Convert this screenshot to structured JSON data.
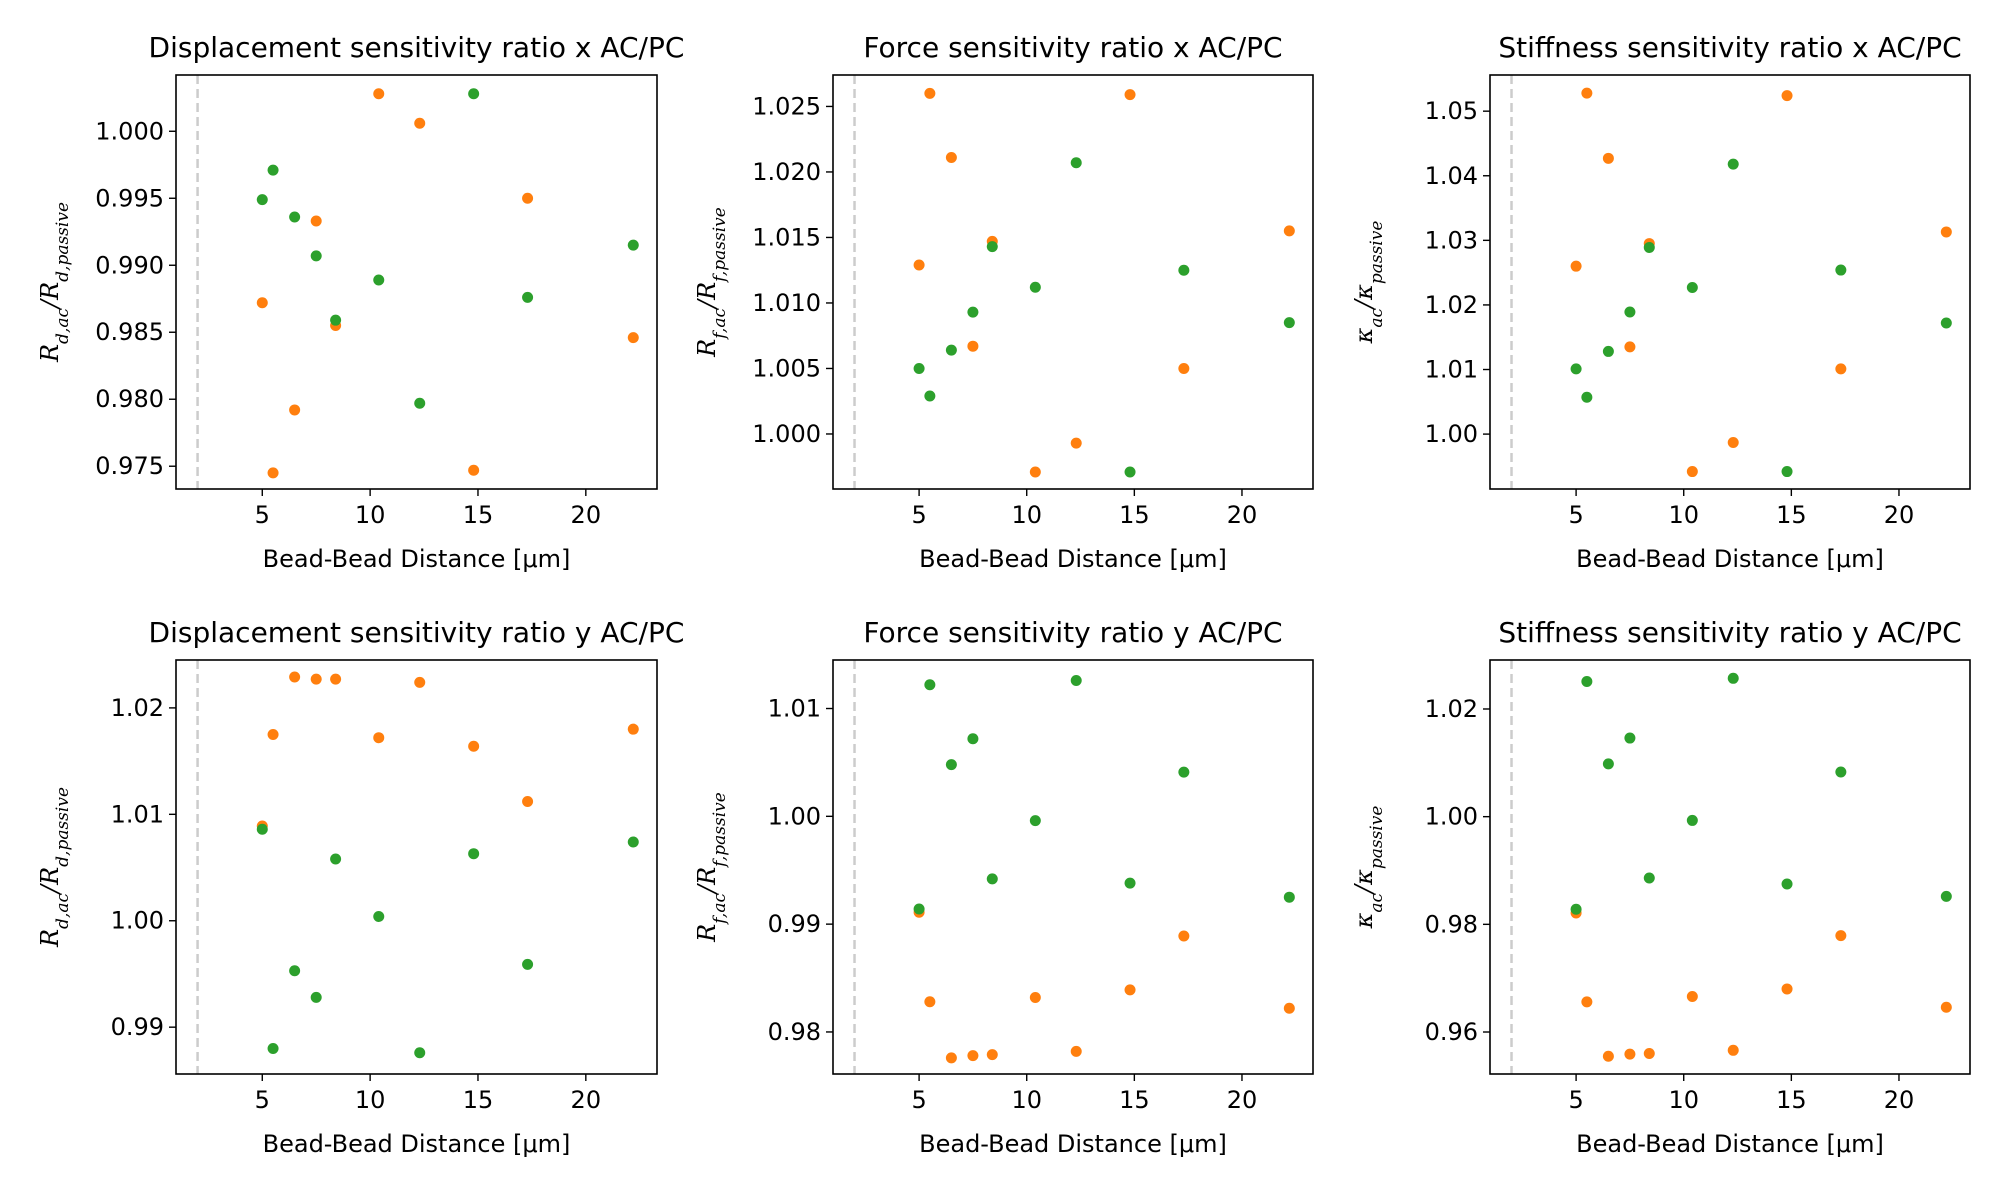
{
  "chart_data": [
    {
      "type": "scatter",
      "title": "Displacement sensitivity ratio x AC/PC",
      "xlabel": "Bead-Bead Distance [μm]",
      "ylabel": "R_{d,ac}/R_{d,passive}",
      "xlim": [
        1.0,
        23.3
      ],
      "ylim": [
        0.9733,
        1.0042
      ],
      "xticks": [
        5,
        10,
        15,
        20
      ],
      "yticks": [
        0.975,
        0.98,
        0.985,
        0.99,
        0.995,
        1.0
      ],
      "ytick_labels": [
        "0.975",
        "0.980",
        "0.985",
        "0.990",
        "0.995",
        "1.000"
      ],
      "vline_x": 2.0,
      "series": [
        {
          "color": "#ff7f0e",
          "x": [
            5.0,
            5.5,
            6.5,
            7.5,
            8.4,
            10.4,
            12.3,
            14.8,
            17.3,
            22.2
          ],
          "y": [
            0.9872,
            0.9745,
            0.9792,
            0.9933,
            0.9855,
            1.0028,
            1.0006,
            0.9747,
            0.995,
            0.9846
          ]
        },
        {
          "color": "#2ca02c",
          "x": [
            5.0,
            5.5,
            6.5,
            7.5,
            8.4,
            10.4,
            12.3,
            14.8,
            17.3,
            22.2
          ],
          "y": [
            0.9949,
            0.9971,
            0.9936,
            0.9907,
            0.9859,
            0.9889,
            0.9797,
            1.0028,
            0.9876,
            0.9915
          ]
        }
      ]
    },
    {
      "type": "scatter",
      "title": "Force sensitivity ratio x AC/PC",
      "xlabel": "Bead-Bead Distance [μm]",
      "ylabel": "R_{f,ac}/R_{f,passive}",
      "xlim": [
        1.0,
        23.3
      ],
      "ylim": [
        0.9958,
        1.0274
      ],
      "xticks": [
        5,
        10,
        15,
        20
      ],
      "yticks": [
        1.0,
        1.005,
        1.01,
        1.015,
        1.02,
        1.025
      ],
      "ytick_labels": [
        "1.000",
        "1.005",
        "1.010",
        "1.015",
        "1.020",
        "1.025"
      ],
      "vline_x": 2.0,
      "series": [
        {
          "color": "#ff7f0e",
          "x": [
            5.0,
            5.5,
            6.5,
            7.5,
            8.4,
            10.4,
            12.3,
            14.8,
            17.3,
            22.2
          ],
          "y": [
            1.0129,
            1.026,
            1.0211,
            1.0067,
            1.0147,
            0.9971,
            0.9993,
            1.0259,
            1.005,
            1.0155
          ]
        },
        {
          "color": "#2ca02c",
          "x": [
            5.0,
            5.5,
            6.5,
            7.5,
            8.4,
            10.4,
            12.3,
            14.8,
            17.3,
            22.2
          ],
          "y": [
            1.005,
            1.0029,
            1.0064,
            1.0093,
            1.0143,
            1.0112,
            1.0207,
            0.9971,
            1.0125,
            1.0085
          ]
        }
      ]
    },
    {
      "type": "scatter",
      "title": "Stiffness sensitivity ratio x AC/PC",
      "xlabel": "Bead-Bead Distance [μm]",
      "ylabel": "κ_{ac}/κ_{passive}",
      "xlim": [
        1.0,
        23.3
      ],
      "ylim": [
        0.9915,
        1.0556
      ],
      "xticks": [
        5,
        10,
        15,
        20
      ],
      "yticks": [
        1.0,
        1.01,
        1.02,
        1.03,
        1.04,
        1.05
      ],
      "ytick_labels": [
        "1.00",
        "1.01",
        "1.02",
        "1.03",
        "1.04",
        "1.05"
      ],
      "vline_x": 2.0,
      "series": [
        {
          "color": "#ff7f0e",
          "x": [
            5.0,
            5.5,
            6.5,
            7.5,
            8.4,
            10.4,
            12.3,
            14.8,
            17.3,
            22.2
          ],
          "y": [
            1.026,
            1.0528,
            1.0427,
            1.0135,
            1.0295,
            0.9942,
            0.9987,
            1.0524,
            1.0101,
            1.0313
          ]
        },
        {
          "color": "#2ca02c",
          "x": [
            5.0,
            5.5,
            6.5,
            7.5,
            8.4,
            10.4,
            12.3,
            14.8,
            17.3,
            22.2
          ],
          "y": [
            1.0101,
            1.0057,
            1.0128,
            1.0189,
            1.0289,
            1.0227,
            1.0418,
            0.9942,
            1.0254,
            1.0172
          ]
        }
      ]
    },
    {
      "type": "scatter",
      "title": "Displacement sensitivity ratio y AC/PC",
      "xlabel": "Bead-Bead Distance [μm]",
      "ylabel": "R_{d,ac}/R_{d,passive}",
      "xlim": [
        1.0,
        23.3
      ],
      "ylim": [
        0.9856,
        1.0245
      ],
      "xticks": [
        5,
        10,
        15,
        20
      ],
      "yticks": [
        0.99,
        1.0,
        1.01,
        1.02
      ],
      "ytick_labels": [
        "0.99",
        "1.00",
        "1.01",
        "1.02"
      ],
      "vline_x": 2.0,
      "series": [
        {
          "color": "#ff7f0e",
          "x": [
            5.0,
            5.5,
            6.5,
            7.5,
            8.4,
            10.4,
            12.3,
            14.8,
            17.3,
            22.2
          ],
          "y": [
            1.0089,
            1.0175,
            1.0229,
            1.0227,
            1.0227,
            1.0172,
            1.0224,
            1.0164,
            1.0112,
            1.018
          ]
        },
        {
          "color": "#2ca02c",
          "x": [
            5.0,
            5.5,
            6.5,
            7.5,
            8.4,
            10.4,
            12.3,
            14.8,
            17.3,
            22.2
          ],
          "y": [
            1.0086,
            0.988,
            0.9953,
            0.9928,
            1.0058,
            1.0004,
            0.9876,
            1.0063,
            0.9959,
            1.0074
          ]
        }
      ]
    },
    {
      "type": "scatter",
      "title": "Force sensitivity ratio y AC/PC",
      "xlabel": "Bead-Bead Distance [μm]",
      "ylabel": "R_{f,ac}/R_{f,passive}",
      "xlim": [
        1.0,
        23.3
      ],
      "ylim": [
        0.9761,
        1.0145
      ],
      "xticks": [
        5,
        10,
        15,
        20
      ],
      "yticks": [
        0.98,
        0.99,
        1.0,
        1.01
      ],
      "ytick_labels": [
        "0.98",
        "0.99",
        "1.00",
        "1.01"
      ],
      "vline_x": 2.0,
      "series": [
        {
          "color": "#ff7f0e",
          "x": [
            5.0,
            5.5,
            6.5,
            7.5,
            8.4,
            10.4,
            12.3,
            14.8,
            17.3,
            22.2
          ],
          "y": [
            0.9911,
            0.9828,
            0.9776,
            0.9778,
            0.9779,
            0.9832,
            0.9782,
            0.9839,
            0.9889,
            0.9822
          ]
        },
        {
          "color": "#2ca02c",
          "x": [
            5.0,
            5.5,
            6.5,
            7.5,
            8.4,
            10.4,
            12.3,
            14.8,
            17.3,
            22.2
          ],
          "y": [
            0.9914,
            1.0122,
            1.0048,
            1.0072,
            0.9942,
            0.9996,
            1.0126,
            0.9938,
            1.0041,
            0.9925
          ]
        }
      ]
    },
    {
      "type": "scatter",
      "title": "Stiffness sensitivity ratio y AC/PC",
      "xlabel": "Bead-Bead Distance [μm]",
      "ylabel": "κ_{ac}/κ_{passive}",
      "xlim": [
        1.0,
        23.3
      ],
      "ylim": [
        0.9522,
        1.0291
      ],
      "xticks": [
        5,
        10,
        15,
        20
      ],
      "yticks": [
        0.96,
        0.98,
        1.0,
        1.02
      ],
      "ytick_labels": [
        "0.96",
        "0.98",
        "1.00",
        "1.02"
      ],
      "vline_x": 2.0,
      "series": [
        {
          "color": "#ff7f0e",
          "x": [
            5.0,
            5.5,
            6.5,
            7.5,
            8.4,
            10.4,
            12.3,
            14.8,
            17.3,
            22.2
          ],
          "y": [
            0.9821,
            0.9656,
            0.9555,
            0.9559,
            0.956,
            0.9666,
            0.9566,
            0.968,
            0.9779,
            0.9646
          ]
        },
        {
          "color": "#2ca02c",
          "x": [
            5.0,
            5.5,
            6.5,
            7.5,
            8.4,
            10.4,
            12.3,
            14.8,
            17.3,
            22.2
          ],
          "y": [
            0.9828,
            1.0251,
            1.0098,
            1.0146,
            0.9886,
            0.9993,
            1.0257,
            0.9875,
            1.0083,
            0.9852
          ]
        }
      ]
    }
  ]
}
